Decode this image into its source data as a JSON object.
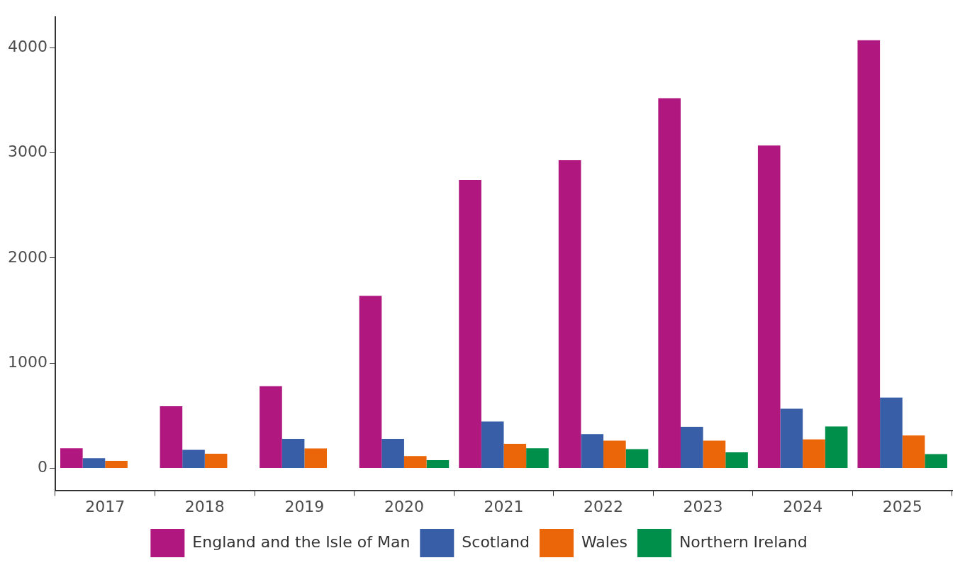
{
  "chart_data": {
    "type": "bar",
    "categories": [
      "2017",
      "2018",
      "2019",
      "2020",
      "2021",
      "2022",
      "2023",
      "2024",
      "2025"
    ],
    "series": [
      {
        "name": "England and the Isle of Man",
        "color": "#b0187f",
        "values": [
          190,
          590,
          780,
          1640,
          2740,
          2930,
          3520,
          3070,
          4070
        ]
      },
      {
        "name": "Scotland",
        "color": "#385ea8",
        "values": [
          95,
          175,
          280,
          280,
          444,
          325,
          394,
          566,
          672
        ]
      },
      {
        "name": "Wales",
        "color": "#eb6608",
        "values": [
          71,
          138,
          188,
          116,
          233,
          262,
          262,
          275,
          312
        ]
      },
      {
        "name": "Northern Ireland",
        "color": "#008f4b",
        "values": [
          null,
          null,
          null,
          77,
          190,
          182,
          151,
          397,
          135
        ]
      }
    ],
    "ylim": [
      -210,
      4290
    ],
    "yticks": [
      0,
      1000,
      2000,
      3000,
      4000
    ],
    "grid": false,
    "legend": "bottom"
  }
}
